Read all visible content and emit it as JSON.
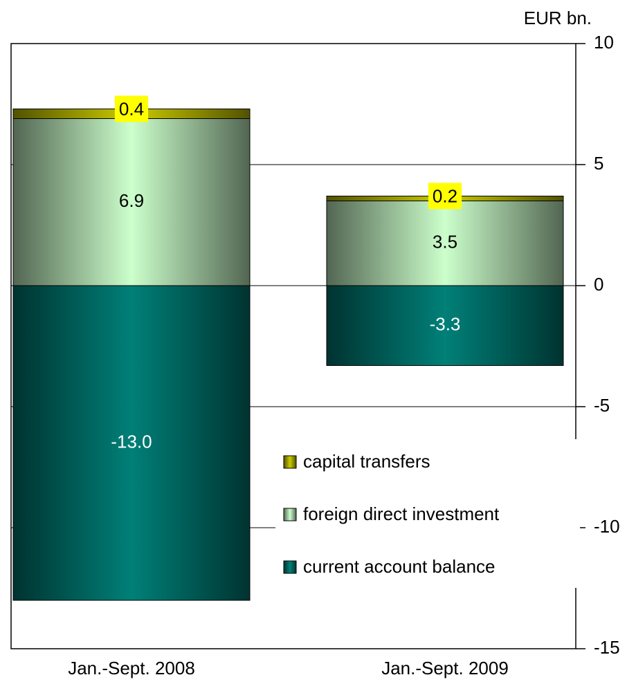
{
  "chart_data": {
    "type": "stacked-bar",
    "unit_label": "EUR bn.",
    "categories": [
      "Jan.-Sept. 2008",
      "Jan.-Sept. 2009"
    ],
    "series": [
      {
        "name": "current account balance",
        "color": "#008078",
        "values": [
          -13.0,
          -3.3
        ],
        "value_labels": [
          "-13.0",
          "-3.3"
        ]
      },
      {
        "name": "foreign direct investment",
        "color": "#ccffcc",
        "values": [
          6.9,
          3.5
        ]
      },
      {
        "name": "capital transfers",
        "color": "#cccc00",
        "values": [
          0.4,
          0.2
        ]
      }
    ],
    "ylim": [
      -15,
      10
    ],
    "yticks": [
      -15,
      -10,
      -5,
      0,
      5,
      10
    ],
    "grid": true
  }
}
